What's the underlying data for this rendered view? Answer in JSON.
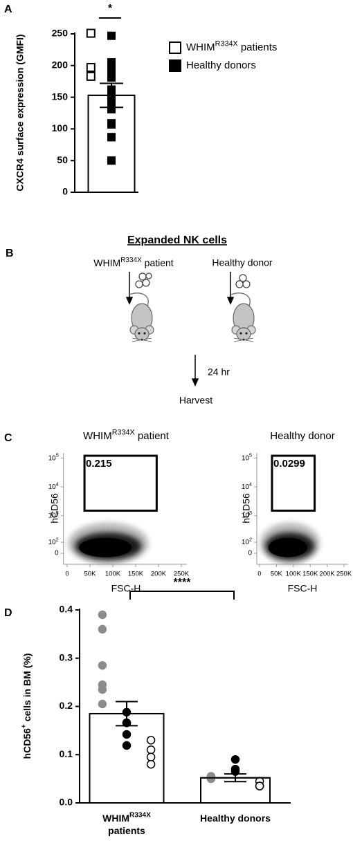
{
  "chart_data": [
    {
      "type": "bar",
      "panel": "A",
      "ylabel": "CXCR4 surface expression (GMFI)",
      "categories": [
        null
      ],
      "values": [
        153
      ],
      "errors": [
        19
      ],
      "ylim": [
        0,
        250
      ],
      "yticks": [
        0,
        50,
        100,
        150,
        200,
        250
      ],
      "significance": "*",
      "legend": "right",
      "series": [
        {
          "name": [
            "WHIM",
            "R334X",
            " patients"
          ],
          "marker": "open-square",
          "color": "#000000",
          "values": [
            [
              251,
              197,
              183
            ]
          ]
        },
        {
          "name": [
            "Healthy donors"
          ],
          "marker": "filled-square",
          "color": "#000000",
          "values": [
            [
              247,
              205,
              205,
              194,
              192,
              181,
              162,
              162,
              151,
              140,
              131,
              109,
              107,
              87,
              87,
              50
            ]
          ]
        }
      ]
    },
    {
      "type": "flow",
      "panel": "C",
      "title": [
        "WHIM",
        "R334X",
        " patient"
      ],
      "xlabel": "FSC-H",
      "ylabel": "hCD56",
      "xlim": [
        -8000,
        262144
      ],
      "xticks": [
        0,
        {
          "value": 50000,
          "label": "50K"
        },
        {
          "value": 100000,
          "label": "100K"
        },
        {
          "value": 150000,
          "label": "150K"
        },
        {
          "value": 200000,
          "label": "200K"
        },
        {
          "value": 250000,
          "label": "250K"
        }
      ],
      "ylim": [
        -100,
        150000
      ],
      "yscale": "biexponential",
      "yticks": [
        0,
        {
          "value": 100,
          "label": [
            "10",
            "2"
          ]
        },
        {
          "value": 1000,
          "label": [
            "10",
            "3"
          ]
        },
        {
          "value": 10000,
          "label": [
            "10",
            "4"
          ]
        },
        {
          "value": 100000,
          "label": [
            "10",
            "5"
          ]
        }
      ],
      "gate": {
        "xlim": [
          38000,
          196000
        ],
        "ylim": [
          1500,
          120000
        ],
        "value": 0.215
      }
    },
    {
      "type": "flow",
      "title": "Healthy donor",
      "xlabel": "FSC-H",
      "ylabel": "hCD56",
      "xlim": [
        -8000,
        262144
      ],
      "xticks": [
        0,
        {
          "value": 50000,
          "label": "50K"
        },
        {
          "value": 100000,
          "label": "100K"
        },
        {
          "value": 150000,
          "label": "150K"
        },
        {
          "value": 200000,
          "label": "200K"
        },
        {
          "value": 250000,
          "label": "250K"
        }
      ],
      "ylim": [
        -100,
        150000
      ],
      "yscale": "biexponential",
      "yticks": [
        0,
        {
          "value": 100,
          "label": [
            "10",
            "2"
          ]
        },
        {
          "value": 1000,
          "label": [
            "10",
            "3"
          ]
        },
        {
          "value": 10000,
          "label": [
            "10",
            "4"
          ]
        },
        {
          "value": 100000,
          "label": [
            "10",
            "5"
          ]
        }
      ],
      "gate": {
        "xlim": [
          37000,
          163000
        ],
        "ylim": [
          1500,
          120000
        ],
        "value": 0.0299
      }
    },
    {
      "type": "bar",
      "panel": "D",
      "ylabel": [
        "hCD56",
        "+",
        " cells in BM (%)"
      ],
      "categories": [
        [
          "WHIM",
          "R334X",
          "patients"
        ],
        [
          "Healthy donors"
        ]
      ],
      "values": [
        0.185,
        0.052
      ],
      "errors": [
        0.025,
        0.008
      ],
      "ylim": [
        0,
        0.4
      ],
      "yticks": [
        {
          "value": 0,
          "label": "0.0"
        },
        0.1,
        0.2,
        0.3,
        0.4
      ],
      "significance": "****",
      "series": [
        {
          "marker": "circle",
          "color": "#8c8c8c",
          "values": [
            [
              0.39,
              0.36,
              0.285,
              0.245,
              0.235,
              0.205
            ],
            [
              0.055,
              0.055,
              0.05
            ]
          ]
        },
        {
          "marker": "circle",
          "color": "#000000",
          "values": [
            [
              0.188,
              0.166,
              0.166,
              0.142,
              0.119
            ],
            [
              0.09,
              0.07,
              0.065
            ]
          ]
        },
        {
          "marker": "circle",
          "color": "#ffffff",
          "values": [
            [
              0.13,
              0.11,
              0.095,
              0.08
            ],
            [
              0.045,
              0.035,
              0.035,
              0.035
            ]
          ]
        }
      ]
    }
  ],
  "diagram": {
    "panel": "B",
    "title": "Expanded NK cells",
    "left": [
      "WHIM",
      "R334X",
      " patient"
    ],
    "right": "Healthy donor",
    "time": "24 hr",
    "end": "Harvest"
  }
}
